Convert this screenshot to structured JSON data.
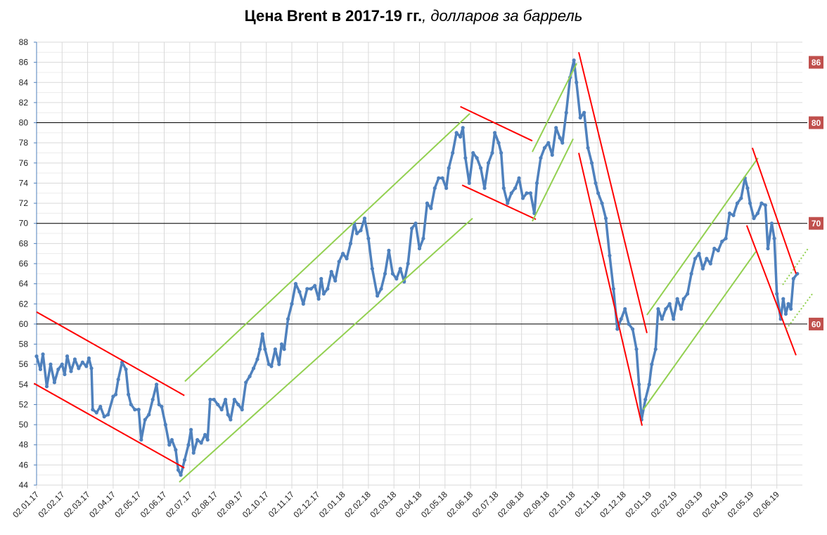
{
  "chart_data": {
    "type": "line",
    "title_bold": "Цена Brent в 2017-19 гг.",
    "title_italic": ", долларов за баррель",
    "xlabel": "",
    "ylabel": "",
    "x_unit": "months since 02.01.17",
    "xlim": [
      0,
      30
    ],
    "ylim": [
      44,
      88
    ],
    "y_ticks": [
      44,
      46,
      48,
      50,
      52,
      54,
      56,
      58,
      60,
      62,
      64,
      66,
      68,
      70,
      72,
      74,
      76,
      78,
      80,
      82,
      84,
      86,
      88
    ],
    "x_tick_labels": [
      "02.01.17",
      "02.02.17",
      "02.03.17",
      "02.04.17",
      "02.05.17",
      "02.06.17",
      "02.07.17",
      "02.08.17",
      "02.09.17",
      "02.10.17",
      "02.11.17",
      "02.12.17",
      "02.01.18",
      "02.02.18",
      "02.03.18",
      "02.04.18",
      "02.05.18",
      "02.06.18",
      "02.07.18",
      "02.08.18",
      "02.09.18",
      "02.10.18",
      "02.11.18",
      "02.12.18",
      "02.01.19",
      "02.02.19",
      "02.03.19",
      "02.04.19",
      "02.05.19",
      "02.06.19"
    ],
    "grid": true,
    "series": [
      {
        "name": "Brent",
        "color": "#4f81bd",
        "points": [
          [
            0,
            56.8
          ],
          [
            0.15,
            55.5
          ],
          [
            0.25,
            57
          ],
          [
            0.4,
            53.8
          ],
          [
            0.55,
            56
          ],
          [
            0.7,
            54.2
          ],
          [
            0.85,
            55.5
          ],
          [
            1.0,
            56
          ],
          [
            1.1,
            55
          ],
          [
            1.2,
            56.8
          ],
          [
            1.35,
            55.3
          ],
          [
            1.5,
            56.5
          ],
          [
            1.65,
            55.6
          ],
          [
            1.8,
            56.2
          ],
          [
            1.95,
            55.8
          ],
          [
            2.05,
            56.6
          ],
          [
            2.15,
            55.6
          ],
          [
            2.2,
            51.5
          ],
          [
            2.35,
            51.2
          ],
          [
            2.5,
            51.8
          ],
          [
            2.65,
            50.8
          ],
          [
            2.8,
            51
          ],
          [
            3.0,
            52.8
          ],
          [
            3.1,
            53
          ],
          [
            3.2,
            54.5
          ],
          [
            3.35,
            56.2
          ],
          [
            3.5,
            55.5
          ],
          [
            3.6,
            53
          ],
          [
            3.7,
            52
          ],
          [
            3.85,
            51.5
          ],
          [
            4.0,
            51.5
          ],
          [
            4.1,
            48.5
          ],
          [
            4.25,
            50.5
          ],
          [
            4.4,
            51
          ],
          [
            4.55,
            52.5
          ],
          [
            4.7,
            54
          ],
          [
            4.8,
            52
          ],
          [
            4.9,
            51.8
          ],
          [
            5.05,
            50
          ],
          [
            5.2,
            48
          ],
          [
            5.3,
            48.5
          ],
          [
            5.45,
            47.5
          ],
          [
            5.55,
            45.5
          ],
          [
            5.65,
            45
          ],
          [
            5.8,
            46.5
          ],
          [
            5.95,
            48
          ],
          [
            6.05,
            49.5
          ],
          [
            6.15,
            47.2
          ],
          [
            6.3,
            48.5
          ],
          [
            6.45,
            48.2
          ],
          [
            6.6,
            49
          ],
          [
            6.7,
            48.5
          ],
          [
            6.8,
            52.5
          ],
          [
            6.95,
            52.5
          ],
          [
            7.1,
            52
          ],
          [
            7.25,
            51.5
          ],
          [
            7.4,
            52.5
          ],
          [
            7.5,
            51
          ],
          [
            7.6,
            50.5
          ],
          [
            7.75,
            52.5
          ],
          [
            7.9,
            52
          ],
          [
            8.05,
            51.5
          ],
          [
            8.2,
            54.2
          ],
          [
            8.35,
            54.8
          ],
          [
            8.5,
            55.6
          ],
          [
            8.65,
            56.5
          ],
          [
            8.75,
            57.5
          ],
          [
            8.85,
            59
          ],
          [
            8.95,
            57.5
          ],
          [
            9.1,
            56
          ],
          [
            9.2,
            55.8
          ],
          [
            9.35,
            57.5
          ],
          [
            9.5,
            56
          ],
          [
            9.6,
            58
          ],
          [
            9.7,
            57.5
          ],
          [
            9.85,
            60.5
          ],
          [
            10.0,
            62
          ],
          [
            10.15,
            64
          ],
          [
            10.3,
            63.2
          ],
          [
            10.45,
            62
          ],
          [
            10.6,
            63.5
          ],
          [
            10.75,
            63.5
          ],
          [
            10.9,
            63.8
          ],
          [
            11.05,
            62.5
          ],
          [
            11.15,
            64.5
          ],
          [
            11.25,
            63
          ],
          [
            11.4,
            63.5
          ],
          [
            11.55,
            65.2
          ],
          [
            11.7,
            64.3
          ],
          [
            11.85,
            66.2
          ],
          [
            12.0,
            67
          ],
          [
            12.15,
            66.5
          ],
          [
            12.3,
            68
          ],
          [
            12.45,
            70
          ],
          [
            12.55,
            69
          ],
          [
            12.7,
            69.3
          ],
          [
            12.85,
            70.5
          ],
          [
            13.0,
            68.5
          ],
          [
            13.15,
            65.5
          ],
          [
            13.35,
            62.8
          ],
          [
            13.5,
            63.5
          ],
          [
            13.65,
            65
          ],
          [
            13.8,
            67.3
          ],
          [
            13.95,
            65
          ],
          [
            14.1,
            64.5
          ],
          [
            14.25,
            65.5
          ],
          [
            14.4,
            64.2
          ],
          [
            14.55,
            66
          ],
          [
            14.7,
            69.5
          ],
          [
            14.85,
            70
          ],
          [
            15.0,
            67.5
          ],
          [
            15.15,
            68.5
          ],
          [
            15.3,
            72
          ],
          [
            15.45,
            71.5
          ],
          [
            15.6,
            73.5
          ],
          [
            15.75,
            74.5
          ],
          [
            15.9,
            74.5
          ],
          [
            16.05,
            73.5
          ],
          [
            16.15,
            75.5
          ],
          [
            16.3,
            77
          ],
          [
            16.45,
            79
          ],
          [
            16.6,
            78.6
          ],
          [
            16.7,
            79.5
          ],
          [
            16.8,
            76.5
          ],
          [
            16.95,
            74
          ],
          [
            17.1,
            77
          ],
          [
            17.25,
            76.5
          ],
          [
            17.4,
            75.5
          ],
          [
            17.55,
            73.5
          ],
          [
            17.7,
            76
          ],
          [
            17.85,
            77
          ],
          [
            17.95,
            79
          ],
          [
            18.1,
            78
          ],
          [
            18.2,
            77
          ],
          [
            18.3,
            73.5
          ],
          [
            18.45,
            72
          ],
          [
            18.6,
            73
          ],
          [
            18.75,
            73.5
          ],
          [
            18.9,
            74.5
          ],
          [
            19.05,
            72.5
          ],
          [
            19.2,
            73
          ],
          [
            19.35,
            73
          ],
          [
            19.5,
            71
          ],
          [
            19.6,
            74
          ],
          [
            19.75,
            76.5
          ],
          [
            19.9,
            77.5
          ],
          [
            20.05,
            78
          ],
          [
            20.2,
            76.8
          ],
          [
            20.35,
            79.5
          ],
          [
            20.5,
            78.5
          ],
          [
            20.6,
            78
          ],
          [
            20.75,
            81
          ],
          [
            20.9,
            84.5
          ],
          [
            21.05,
            86.2
          ],
          [
            21.15,
            84
          ],
          [
            21.3,
            80.5
          ],
          [
            21.45,
            81
          ],
          [
            21.6,
            77.5
          ],
          [
            21.75,
            76
          ],
          [
            21.9,
            74
          ],
          [
            22.0,
            73
          ],
          [
            22.15,
            72
          ],
          [
            22.3,
            70.5
          ],
          [
            22.45,
            66.8
          ],
          [
            22.6,
            63.5
          ],
          [
            22.75,
            59.5
          ],
          [
            22.9,
            60.5
          ],
          [
            23.05,
            61.5
          ],
          [
            23.2,
            60
          ],
          [
            23.35,
            59.5
          ],
          [
            23.5,
            57.5
          ],
          [
            23.6,
            54
          ],
          [
            23.7,
            50.5
          ],
          [
            23.85,
            52.5
          ],
          [
            24.0,
            54
          ],
          [
            24.1,
            56
          ],
          [
            24.25,
            57.5
          ],
          [
            24.35,
            61.5
          ],
          [
            24.5,
            60.5
          ],
          [
            24.65,
            61.5
          ],
          [
            24.8,
            62
          ],
          [
            24.95,
            60.5
          ],
          [
            25.1,
            62.5
          ],
          [
            25.25,
            61.5
          ],
          [
            25.35,
            62.5
          ],
          [
            25.5,
            63
          ],
          [
            25.65,
            65
          ],
          [
            25.8,
            66.5
          ],
          [
            25.95,
            67
          ],
          [
            26.1,
            65.5
          ],
          [
            26.25,
            66.5
          ],
          [
            26.4,
            66
          ],
          [
            26.55,
            67.5
          ],
          [
            26.7,
            67.3
          ],
          [
            26.85,
            68.2
          ],
          [
            27.0,
            68.5
          ],
          [
            27.15,
            71
          ],
          [
            27.3,
            70.8
          ],
          [
            27.45,
            72
          ],
          [
            27.6,
            72.5
          ],
          [
            27.75,
            74.5
          ],
          [
            27.85,
            73.5
          ],
          [
            27.95,
            72
          ],
          [
            28.1,
            70.5
          ],
          [
            28.25,
            71
          ],
          [
            28.4,
            72
          ],
          [
            28.55,
            71.8
          ],
          [
            28.65,
            67.5
          ],
          [
            28.8,
            70
          ],
          [
            28.9,
            68.5
          ],
          [
            29.0,
            63
          ],
          [
            29.15,
            60.5
          ],
          [
            29.25,
            62.5
          ],
          [
            29.35,
            61
          ],
          [
            29.45,
            62
          ],
          [
            29.55,
            61.5
          ],
          [
            29.65,
            64.5
          ],
          [
            29.8,
            65
          ]
        ]
      }
    ],
    "trend_lines": [
      {
        "color": "#ff0000",
        "style": "solid",
        "from": [
          0,
          61.2
        ],
        "to": [
          5.79,
          52.9
        ]
      },
      {
        "color": "#ff0000",
        "style": "solid",
        "from": [
          -0.1,
          54.1
        ],
        "to": [
          5.79,
          45.7
        ]
      },
      {
        "color": "#92d050",
        "style": "solid",
        "from": [
          5.81,
          54.3
        ],
        "to": [
          16.97,
          80.9
        ]
      },
      {
        "color": "#92d050",
        "style": "solid",
        "from": [
          5.59,
          44.3
        ],
        "to": [
          17.08,
          70.5
        ]
      },
      {
        "color": "#ff0000",
        "style": "solid",
        "from": [
          16.6,
          81.6
        ],
        "to": [
          19.42,
          78.2
        ]
      },
      {
        "color": "#ff0000",
        "style": "solid",
        "from": [
          16.67,
          73.8
        ],
        "to": [
          19.56,
          70.4
        ]
      },
      {
        "color": "#92d050",
        "style": "solid",
        "from": [
          19.42,
          77.1
        ],
        "to": [
          21.16,
          85.9
        ]
      },
      {
        "color": "#92d050",
        "style": "solid",
        "from": [
          19.42,
          70.2
        ],
        "to": [
          21.02,
          78.4
        ]
      },
      {
        "color": "#ff0000",
        "style": "solid",
        "from": [
          21.24,
          87.0
        ],
        "to": [
          23.91,
          59.1
        ]
      },
      {
        "color": "#ff0000",
        "style": "solid",
        "from": [
          21.24,
          77.0
        ],
        "to": [
          23.72,
          49.9
        ]
      },
      {
        "color": "#92d050",
        "style": "solid",
        "from": [
          23.91,
          60.9
        ],
        "to": [
          28.26,
          76.5
        ]
      },
      {
        "color": "#92d050",
        "style": "solid",
        "from": [
          23.77,
          51.5
        ],
        "to": [
          28.18,
          67.2
        ]
      },
      {
        "color": "#ff0000",
        "style": "solid",
        "from": [
          28.04,
          77.5
        ],
        "to": [
          29.75,
          65.0
        ]
      },
      {
        "color": "#ff0000",
        "style": "solid",
        "from": [
          27.82,
          69.8
        ],
        "to": [
          29.75,
          56.9
        ]
      },
      {
        "color": "#92d050",
        "style": "dotted",
        "from": [
          29.23,
          63.9
        ],
        "to": [
          30.25,
          67.6
        ]
      },
      {
        "color": "#92d050",
        "style": "dotted",
        "from": [
          29.37,
          59.5
        ],
        "to": [
          30.39,
          63.0
        ]
      }
    ],
    "reference_levels": [
      80,
      70,
      60
    ],
    "level_labels": [
      {
        "value": 86,
        "text": "86"
      },
      {
        "value": 80,
        "text": "80"
      },
      {
        "value": 70,
        "text": "70"
      },
      {
        "value": 60,
        "text": "60"
      }
    ],
    "level_label_color": "#c0504d"
  }
}
